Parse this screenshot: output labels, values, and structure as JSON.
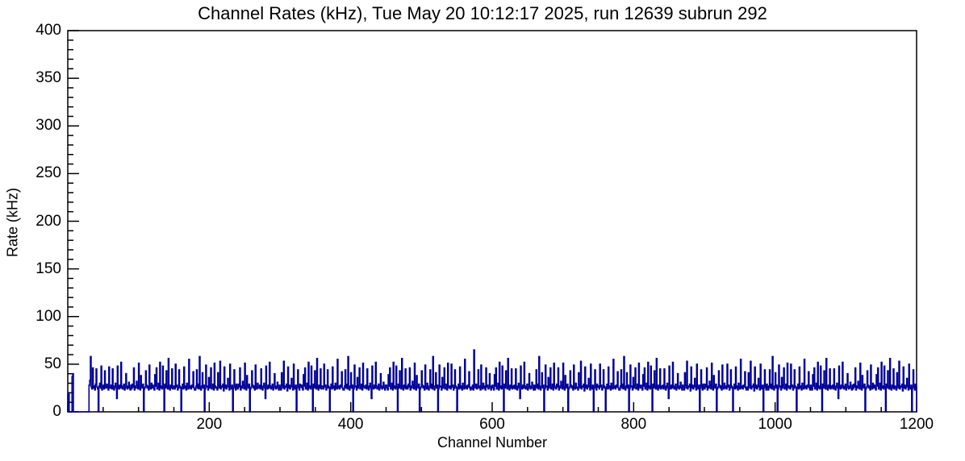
{
  "chart_data": {
    "type": "line",
    "style": "histogram-step",
    "title": "Channel Rates (kHz), Tue May 20 10:12:17 2025, run 12639 subrun 292",
    "xlabel": "Channel Number",
    "ylabel": "Rate (kHz)",
    "xlim": [
      0,
      1200
    ],
    "ylim": [
      0,
      400
    ],
    "x_major_step": 200,
    "x_minor_step": 50,
    "y_major_step": 50,
    "y_minor_step": 10,
    "x_major_labels": [
      "200",
      "400",
      "600",
      "800",
      "1000",
      "1200"
    ],
    "y_major_labels": [
      "0",
      "50",
      "100",
      "150",
      "200",
      "250",
      "300",
      "350",
      "400"
    ],
    "grid": false,
    "legend": false,
    "line_color": "#000099",
    "axis_color": "#000000",
    "background_color": "#ffffff",
    "bin_width": 1,
    "x_start": 0,
    "values": [
      18,
      20,
      0,
      0,
      0,
      0,
      37,
      40,
      0,
      0,
      0,
      0,
      0,
      0,
      0,
      0,
      0,
      0,
      0,
      0,
      0,
      0,
      0,
      0,
      0,
      0,
      0,
      0,
      0,
      0,
      28,
      33,
      58,
      26,
      24,
      46,
      25,
      27,
      23,
      29,
      45,
      26,
      24,
      0,
      27,
      30,
      25,
      48,
      23,
      26,
      28,
      24,
      43,
      27,
      25,
      29,
      26,
      23,
      47,
      25,
      25,
      28,
      24,
      45,
      26,
      23,
      27,
      30,
      25,
      14,
      48,
      26,
      24,
      28,
      25,
      52,
      27,
      24,
      26,
      29,
      23,
      25,
      40,
      27,
      24,
      26,
      31,
      25,
      23,
      28,
      24,
      29,
      26,
      46,
      23,
      27,
      25,
      32,
      28,
      24,
      51,
      26,
      23,
      38,
      27,
      25,
      29,
      0,
      24,
      26,
      43,
      28,
      25,
      27,
      23,
      49,
      26,
      24,
      30,
      25,
      28,
      25,
      23,
      39,
      27,
      46,
      24,
      26,
      30,
      23,
      52,
      25,
      27,
      24,
      48,
      26,
      0,
      29,
      25,
      43,
      27,
      24,
      56,
      26,
      23,
      28,
      25,
      45,
      24,
      27,
      27,
      24,
      50,
      26,
      28,
      23,
      25,
      44,
      27,
      25,
      0,
      26,
      29,
      24,
      47,
      25,
      27,
      23,
      30,
      26,
      24,
      55,
      25,
      27,
      24,
      28,
      26,
      42,
      25,
      23,
      23,
      27,
      44,
      25,
      29,
      24,
      58,
      26,
      23,
      27,
      41,
      25,
      28,
      0,
      24,
      49,
      26,
      27,
      23,
      36,
      25,
      28,
      46,
      24,
      26,
      29,
      23,
      51,
      27,
      25,
      26,
      23,
      41,
      28,
      25,
      53,
      24,
      27,
      26,
      29,
      22,
      47,
      25,
      28,
      24,
      26,
      35,
      27,
      23,
      50,
      26,
      24,
      28,
      0,
      25,
      44,
      27,
      23,
      29,
      26,
      24,
      29,
      26,
      46,
      23,
      27,
      25,
      32,
      28,
      24,
      51,
      26,
      23,
      38,
      27,
      25,
      29,
      0,
      24,
      26,
      43,
      28,
      25,
      27,
      23,
      49,
      26,
      24,
      30,
      25,
      25,
      28,
      24,
      45,
      26,
      23,
      27,
      30,
      25,
      14,
      48,
      26,
      24,
      28,
      25,
      52,
      27,
      24,
      26,
      29,
      23,
      25,
      40,
      27,
      24,
      26,
      31,
      25,
      23,
      28,
      26,
      23,
      41,
      28,
      25,
      53,
      24,
      27,
      26,
      29,
      22,
      47,
      25,
      28,
      24,
      26,
      35,
      27,
      23,
      50,
      26,
      24,
      28,
      0,
      25,
      44,
      27,
      23,
      29,
      26,
      28,
      25,
      23,
      39,
      27,
      46,
      24,
      26,
      30,
      23,
      52,
      25,
      27,
      24,
      48,
      26,
      0,
      29,
      25,
      43,
      27,
      24,
      56,
      26,
      23,
      28,
      25,
      45,
      24,
      27,
      27,
      24,
      50,
      26,
      28,
      23,
      25,
      44,
      27,
      25,
      0,
      26,
      29,
      24,
      47,
      25,
      27,
      23,
      30,
      26,
      24,
      55,
      25,
      27,
      24,
      28,
      26,
      42,
      25,
      23,
      23,
      27,
      44,
      25,
      29,
      24,
      58,
      26,
      23,
      27,
      41,
      25,
      28,
      0,
      24,
      49,
      26,
      27,
      23,
      36,
      25,
      28,
      46,
      24,
      26,
      29,
      23,
      51,
      27,
      25,
      25,
      28,
      24,
      45,
      26,
      23,
      27,
      30,
      25,
      14,
      48,
      26,
      24,
      28,
      25,
      52,
      27,
      24,
      26,
      29,
      23,
      25,
      40,
      27,
      24,
      26,
      31,
      25,
      23,
      28,
      28,
      25,
      23,
      39,
      27,
      46,
      24,
      26,
      30,
      23,
      52,
      25,
      27,
      24,
      48,
      26,
      0,
      29,
      25,
      43,
      27,
      24,
      56,
      26,
      23,
      28,
      25,
      45,
      24,
      27,
      24,
      29,
      26,
      46,
      23,
      27,
      25,
      32,
      28,
      24,
      51,
      26,
      23,
      38,
      27,
      25,
      29,
      0,
      24,
      26,
      43,
      28,
      25,
      27,
      23,
      49,
      26,
      24,
      30,
      25,
      23,
      27,
      44,
      25,
      29,
      24,
      58,
      26,
      23,
      27,
      41,
      25,
      28,
      0,
      24,
      49,
      26,
      27,
      23,
      36,
      25,
      28,
      46,
      24,
      26,
      29,
      23,
      51,
      27,
      25,
      27,
      24,
      50,
      26,
      28,
      23,
      25,
      44,
      27,
      25,
      0,
      26,
      29,
      24,
      47,
      25,
      27,
      23,
      30,
      26,
      24,
      55,
      25,
      27,
      24,
      28,
      26,
      42,
      25,
      23,
      26,
      24,
      28,
      23,
      65,
      27,
      25,
      29,
      24,
      26,
      44,
      25,
      27,
      23,
      49,
      26,
      24,
      30,
      25,
      27,
      23,
      46,
      26,
      28,
      24,
      25,
      40,
      27,
      23,
      26,
      28,
      25,
      23,
      39,
      27,
      46,
      24,
      26,
      30,
      23,
      52,
      25,
      27,
      24,
      48,
      26,
      0,
      29,
      25,
      43,
      27,
      24,
      56,
      26,
      23,
      28,
      25,
      45,
      24,
      27,
      25,
      28,
      24,
      45,
      26,
      23,
      27,
      30,
      25,
      14,
      48,
      26,
      24,
      28,
      25,
      52,
      27,
      24,
      26,
      29,
      23,
      25,
      40,
      27,
      24,
      26,
      31,
      25,
      23,
      28,
      23,
      27,
      44,
      25,
      29,
      24,
      58,
      26,
      23,
      27,
      41,
      25,
      28,
      0,
      24,
      49,
      26,
      27,
      23,
      36,
      25,
      28,
      46,
      24,
      26,
      29,
      23,
      51,
      27,
      25,
      24,
      29,
      26,
      46,
      23,
      27,
      25,
      32,
      28,
      24,
      51,
      26,
      23,
      38,
      27,
      25,
      29,
      0,
      24,
      26,
      43,
      28,
      25,
      27,
      23,
      49,
      26,
      24,
      30,
      25,
      26,
      23,
      41,
      28,
      25,
      53,
      24,
      27,
      26,
      29,
      22,
      47,
      25,
      28,
      24,
      26,
      35,
      27,
      23,
      50,
      26,
      24,
      28,
      0,
      25,
      44,
      27,
      23,
      29,
      26,
      27,
      24,
      50,
      26,
      28,
      23,
      25,
      44,
      27,
      25,
      0,
      26,
      29,
      24,
      47,
      25,
      27,
      23,
      30,
      26,
      24,
      55,
      25,
      27,
      24,
      28,
      26,
      42,
      25,
      23,
      23,
      27,
      44,
      25,
      29,
      24,
      58,
      26,
      23,
      27,
      41,
      25,
      28,
      0,
      24,
      49,
      26,
      27,
      23,
      36,
      25,
      28,
      46,
      24,
      26,
      29,
      23,
      51,
      27,
      25,
      28,
      25,
      23,
      39,
      27,
      46,
      24,
      26,
      30,
      23,
      52,
      25,
      27,
      24,
      48,
      26,
      0,
      29,
      25,
      43,
      27,
      24,
      56,
      26,
      23,
      28,
      25,
      45,
      24,
      27,
      25,
      28,
      24,
      45,
      26,
      23,
      27,
      30,
      25,
      14,
      48,
      26,
      24,
      28,
      25,
      52,
      27,
      24,
      26,
      29,
      23,
      25,
      40,
      27,
      24,
      26,
      31,
      25,
      23,
      28,
      26,
      23,
      41,
      28,
      25,
      53,
      24,
      27,
      26,
      29,
      22,
      47,
      25,
      28,
      24,
      26,
      35,
      27,
      23,
      50,
      26,
      24,
      28,
      0,
      25,
      44,
      27,
      23,
      29,
      26,
      24,
      29,
      26,
      46,
      23,
      27,
      25,
      32,
      28,
      24,
      51,
      26,
      23,
      38,
      27,
      25,
      29,
      0,
      24,
      26,
      43,
      28,
      25,
      27,
      23,
      49,
      26,
      24,
      30,
      25,
      27,
      24,
      50,
      26,
      28,
      23,
      25,
      44,
      27,
      25,
      0,
      26,
      29,
      24,
      47,
      25,
      27,
      23,
      30,
      26,
      24,
      55,
      25,
      27,
      24,
      28,
      26,
      42,
      25,
      23,
      26,
      23,
      41,
      28,
      25,
      53,
      24,
      27,
      26,
      29,
      22,
      47,
      25,
      28,
      24,
      26,
      35,
      27,
      23,
      50,
      26,
      24,
      28,
      0,
      25,
      44,
      27,
      23,
      29,
      26,
      23,
      27,
      44,
      25,
      29,
      24,
      58,
      26,
      23,
      27,
      41,
      25,
      28,
      0,
      24,
      49,
      26,
      27,
      23,
      36,
      25,
      28,
      46,
      24,
      26,
      29,
      23,
      51,
      27,
      25,
      27,
      24,
      50,
      26,
      28,
      23,
      25,
      44,
      27,
      25,
      0,
      26,
      29,
      24,
      47,
      25,
      27,
      23,
      30,
      26,
      24,
      55,
      25,
      27,
      24,
      28,
      26,
      42,
      25,
      23,
      28,
      25,
      23,
      39,
      27,
      46,
      24,
      26,
      30,
      23,
      52,
      25,
      27,
      24,
      48,
      26,
      0,
      29,
      25,
      43,
      27,
      24,
      56,
      26,
      23,
      28,
      25,
      45,
      24,
      27,
      25,
      28,
      24,
      45,
      26,
      23,
      27,
      30,
      25,
      14,
      48,
      26,
      24,
      28,
      25,
      52,
      27,
      24,
      26,
      29,
      23,
      25,
      40,
      27,
      24,
      26,
      31,
      25,
      23,
      28,
      24,
      29,
      26,
      46,
      23,
      27,
      25,
      32,
      28,
      24,
      51,
      26,
      23,
      38,
      27,
      25,
      29,
      0,
      24,
      26,
      43,
      28,
      25,
      27,
      23,
      49,
      26,
      24,
      30,
      25,
      28,
      25,
      23,
      39,
      27,
      46,
      24,
      26,
      30,
      23,
      52,
      25,
      27,
      24,
      48,
      26,
      0,
      29,
      25,
      43,
      27,
      24,
      56,
      26,
      23,
      28,
      25,
      45,
      24,
      27,
      26,
      23,
      41,
      28,
      25,
      53,
      24,
      27,
      26,
      29,
      22,
      47,
      25,
      28,
      24,
      26,
      35,
      27,
      23,
      50,
      26,
      24,
      28,
      0,
      25,
      44,
      27,
      23,
      29,
      26
    ]
  }
}
